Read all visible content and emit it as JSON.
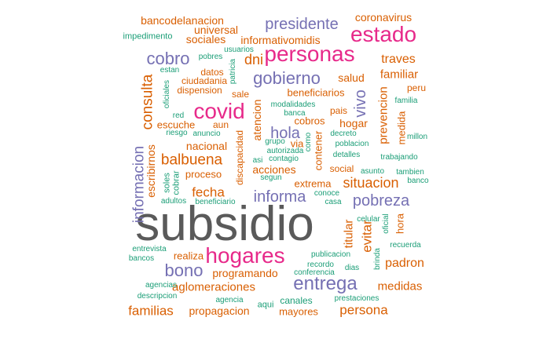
{
  "colors": {
    "gray": "#5a5a5a",
    "pink": "#e7298a",
    "purple": "#7570b3",
    "orange": "#d95f02",
    "green": "#1b9e77"
  },
  "words": [
    "subsidio",
    "hogares",
    "personas",
    "estado",
    "covid",
    "entrega",
    "gobierno",
    "cobro",
    "presidente",
    "bono",
    "pobreza",
    "informa",
    "balbuena",
    "situacion",
    "hola",
    "vivo",
    "consulta",
    "informacion",
    "fecha",
    "familias",
    "persona",
    "evitar",
    "padron",
    "medidas",
    "prevencion",
    "titular",
    "atencion",
    "aglomeraciones",
    "dni",
    "traves",
    "familiar",
    "salud",
    "escribirnos",
    "nacional",
    "acciones",
    "hogar",
    "universal",
    "informativomidis",
    "sociales",
    "bancodelanacion",
    "coronavirus",
    "programando",
    "propagacion",
    "mayores",
    "beneficiarios",
    "proceso",
    "contener",
    "discapacidad",
    "extrema",
    "medida",
    "hora",
    "escuche",
    "via",
    "cobros",
    "realiza",
    "impedimento",
    "datos",
    "peru",
    "ciudadania",
    "dispension",
    "sale",
    "pais",
    "aun",
    "social",
    "canales",
    "usuarios",
    "pobres",
    "estan",
    "patricia",
    "oficiales",
    "familia",
    "red",
    "riesgo",
    "anuncio",
    "modalidades",
    "banca",
    "decreto",
    "poblacion",
    "millon",
    "grupo",
    "como",
    "autorizada",
    "detalles",
    "asi",
    "contagio",
    "trabajando",
    "segun",
    "asunto",
    "tambien",
    "banco",
    "soles",
    "cobrar",
    "conoce",
    "casa",
    "adultos",
    "beneficiario",
    "celular",
    "oficial",
    "brinda",
    "entrevista",
    "recuerda",
    "bancos",
    "publicacion",
    "recordo",
    "dias",
    "conferencia",
    "agencias",
    "descripcion",
    "agencia",
    "aqui",
    "prestaciones"
  ]
}
